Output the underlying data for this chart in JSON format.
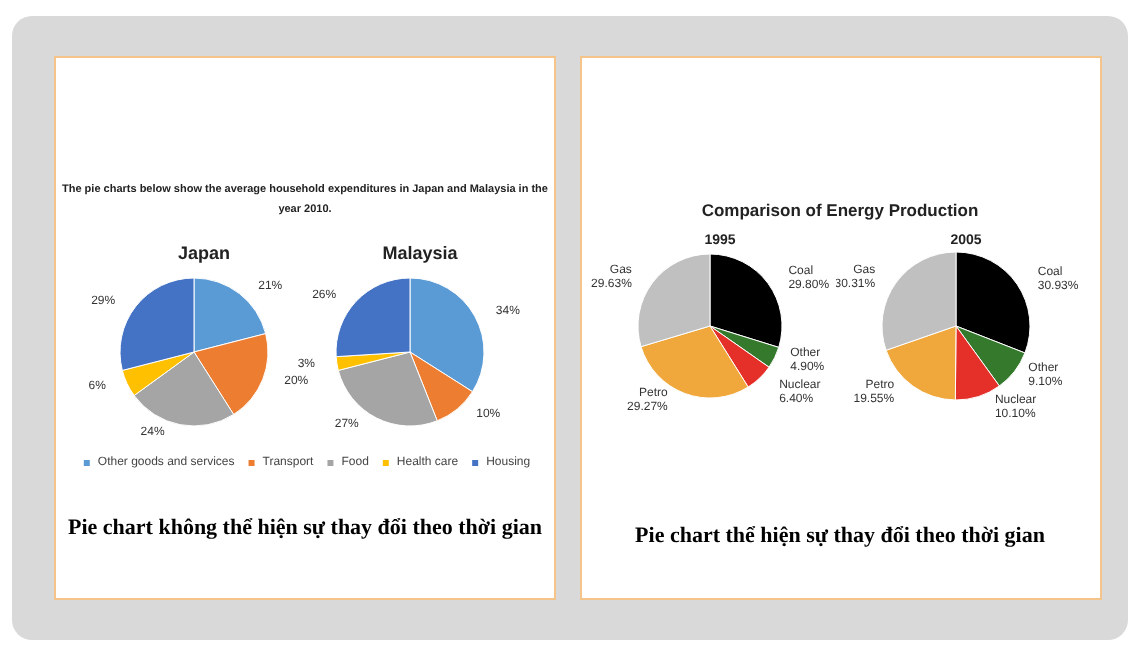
{
  "chart_data": [
    {
      "type": "other",
      "title": "The pie charts below show the average household expenditures in Japan and Malaysia in the year 2010.",
      "annotations": [
        "Pie chart không thể hiện sự thay đổi theo thời gian"
      ]
    },
    {
      "type": "pie",
      "categories": [
        "Other goods and services",
        "Transport",
        "Food",
        "Health care",
        "Housing"
      ],
      "colors": [
        "#5b9bd5",
        "#ed7d31",
        "#a5a5a5",
        "#ffc000",
        "#4472c4"
      ],
      "legend": "bottom",
      "series": [
        {
          "name": "Japan",
          "values": [
            21,
            20,
            24,
            6,
            29
          ],
          "value_labels": [
            "21%",
            "20%",
            "24%",
            "6%",
            "29%"
          ]
        },
        {
          "name": "Malaysia",
          "values": [
            34,
            10,
            27,
            3,
            26
          ],
          "value_labels": [
            "34%",
            "10%",
            "27%",
            "3%",
            "26%"
          ]
        }
      ]
    },
    {
      "type": "other",
      "title": "Comparison of Energy Production",
      "annotations": [
        "Pie chart thể hiện sự thay đổi theo thời gian"
      ]
    },
    {
      "type": "pie",
      "title": "1995",
      "categories": [
        "Coal",
        "Other",
        "Nuclear",
        "Petro",
        "Gas"
      ],
      "values": [
        29.8,
        4.9,
        6.4,
        29.27,
        29.63
      ],
      "colors": [
        "#000000",
        "#357a2c",
        "#e5302a",
        "#f0a83c",
        "#c0c0c0"
      ],
      "value_labels": [
        "29.80%",
        "4.90%",
        "6.40%",
        "29.27%",
        "29.63%"
      ]
    },
    {
      "type": "pie",
      "title": "2005",
      "categories": [
        "Coal",
        "Other",
        "Nuclear",
        "Petro",
        "Gas"
      ],
      "values": [
        30.93,
        9.1,
        10.1,
        19.55,
        30.31
      ],
      "colors": [
        "#000000",
        "#357a2c",
        "#e5302a",
        "#f0a83c",
        "#c0c0c0"
      ],
      "value_labels": [
        "30.93%",
        "9.10%",
        "10.10%",
        "19.55%",
        "30.31%"
      ]
    }
  ]
}
